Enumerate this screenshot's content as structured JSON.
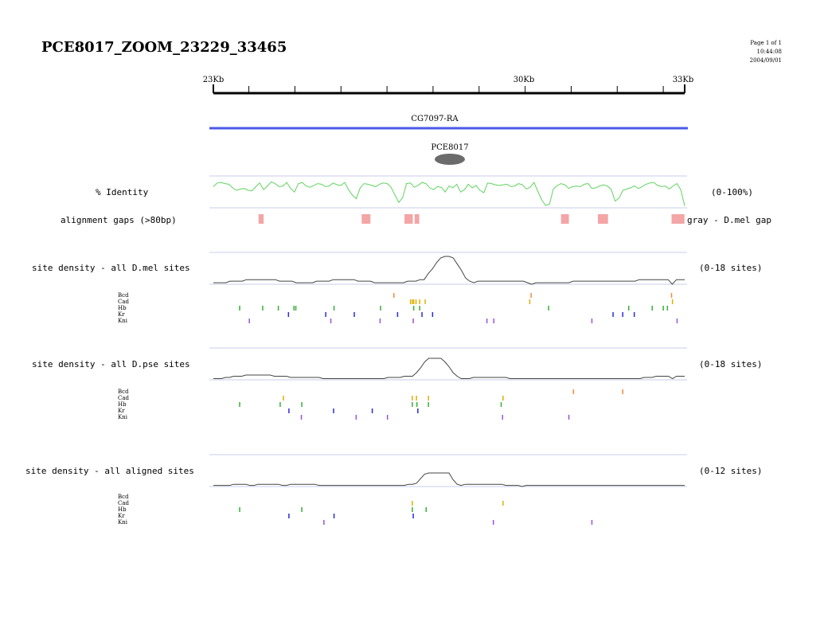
{
  "page": {
    "title": "PCE8017_ZOOM_23229_33465",
    "meta_lines": [
      "Page 1 of 1",
      "10:44:08",
      "2004/09/01"
    ]
  },
  "ruler": {
    "labels": [
      "23Kb",
      "30Kb",
      "33Kb"
    ],
    "start_kb": 23.229,
    "end_kb": 33.465
  },
  "gene": {
    "label": "CG7097-RA",
    "color": "#4a5ae8"
  },
  "element": {
    "label": "PCE8017",
    "color": "#6b6b6b"
  },
  "identity": {
    "label": "% Identity",
    "range_label": "(0-100%)",
    "color": "#5fd35f",
    "values": [
      70,
      82,
      84,
      80,
      78,
      66,
      58,
      62,
      64,
      58,
      56,
      70,
      82,
      60,
      72,
      86,
      80,
      70,
      72,
      84,
      64,
      52,
      80,
      84,
      72,
      68,
      74,
      80,
      78,
      70,
      72,
      82,
      76,
      74,
      84,
      60,
      42,
      30,
      66,
      80,
      78,
      74,
      70,
      78,
      82,
      80,
      68,
      42,
      18,
      34,
      80,
      82,
      68,
      74,
      84,
      80,
      66,
      60,
      70,
      68,
      52,
      72,
      66,
      78,
      52,
      60,
      78,
      66,
      74,
      58,
      50,
      82,
      80,
      76,
      74,
      76,
      78,
      70,
      72,
      80,
      76,
      62,
      68,
      84,
      54,
      26,
      8,
      12,
      62,
      74,
      80,
      76,
      64,
      70,
      72,
      70,
      78,
      80,
      64,
      66,
      72,
      76,
      72,
      60,
      22,
      32,
      58,
      62,
      66,
      72,
      64,
      70,
      78,
      82,
      84,
      74,
      70,
      72,
      62,
      72,
      80,
      60,
      6
    ]
  },
  "gaps": {
    "label": "alignment gaps (>80bp)",
    "note": "gray - D.mel gap",
    "color": "#f4a5a5",
    "blocks_kb": [
      [
        24.21,
        24.32
      ],
      [
        26.45,
        26.64
      ],
      [
        27.38,
        27.56
      ],
      [
        27.6,
        27.7
      ],
      [
        30.78,
        30.95
      ],
      [
        31.58,
        31.8
      ],
      [
        33.18,
        33.46
      ]
    ]
  },
  "tf_names": [
    "Bcd",
    "Cad",
    "Hb",
    "Kr",
    "Kni"
  ],
  "tf_colors": [
    "#f28c3c",
    "#e0b000",
    "#35b035",
    "#2a2ad8",
    "#9a50e8"
  ],
  "density_tracks": [
    {
      "label": "site density - all D.mel sites",
      "range_label": "(0-18 sites)",
      "max": 18,
      "values": [
        1,
        1,
        1,
        1,
        2,
        2,
        2,
        2,
        3,
        3,
        3,
        3,
        3,
        3,
        3,
        3,
        2,
        2,
        2,
        2,
        1,
        1,
        1,
        1,
        1,
        2,
        2,
        2,
        2,
        3,
        3,
        3,
        3,
        3,
        3,
        2,
        2,
        2,
        2,
        1,
        1,
        1,
        1,
        1,
        1,
        1,
        1,
        2,
        2,
        2,
        3,
        3,
        7,
        10,
        14,
        17,
        18,
        18,
        17,
        13,
        9,
        4,
        2,
        1,
        2,
        2,
        2,
        2,
        2,
        2,
        2,
        2,
        2,
        2,
        2,
        2,
        1,
        0,
        1,
        1,
        1,
        1,
        1,
        1,
        1,
        1,
        1,
        2,
        2,
        2,
        2,
        2,
        2,
        2,
        2,
        2,
        2,
        2,
        2,
        2,
        2,
        2,
        2,
        3,
        3,
        3,
        3,
        3,
        3,
        3,
        3,
        0,
        3,
        3,
        3
      ],
      "sites": [
        [
          27.15,
          30.13,
          33.18
        ],
        [
          27.51,
          27.55,
          27.58,
          27.63,
          27.71,
          27.83,
          30.1,
          33.2
        ],
        [
          23.8,
          24.3,
          24.64,
          24.98,
          25.02,
          25.85,
          26.86,
          27.58,
          27.71,
          30.51,
          32.25,
          32.76,
          33.0,
          33.09
        ],
        [
          24.86,
          25.67,
          26.29,
          27.23,
          27.76,
          27.99,
          31.91,
          32.12,
          32.37
        ],
        [
          24.01,
          25.78,
          26.85,
          27.57,
          29.17,
          29.32,
          31.45,
          33.3
        ]
      ]
    },
    {
      "label": "site density - all D.pse sites",
      "range_label": "(0-18 sites)",
      "max": 18,
      "values": [
        1,
        1,
        1,
        2,
        2,
        3,
        3,
        3,
        4,
        4,
        4,
        4,
        4,
        4,
        4,
        3,
        3,
        3,
        3,
        2,
        2,
        2,
        2,
        2,
        2,
        2,
        2,
        1,
        1,
        1,
        1,
        1,
        1,
        1,
        1,
        1,
        1,
        1,
        1,
        1,
        1,
        1,
        1,
        2,
        2,
        2,
        2,
        3,
        3,
        3,
        6,
        10,
        15,
        18,
        18,
        18,
        18,
        15,
        11,
        6,
        3,
        1,
        1,
        1,
        2,
        2,
        2,
        2,
        2,
        2,
        2,
        2,
        2,
        1,
        1,
        1,
        1,
        1,
        1,
        1,
        1,
        1,
        1,
        1,
        1,
        1,
        1,
        1,
        1,
        1,
        1,
        1,
        1,
        1,
        1,
        1,
        1,
        1,
        1,
        1,
        1,
        1,
        1,
        1,
        1,
        1,
        2,
        2,
        2,
        3,
        3,
        3,
        3,
        1,
        3,
        3,
        3
      ],
      "sites": [
        [
          31.05,
          32.12
        ],
        [
          24.75,
          27.55,
          27.64,
          27.9,
          29.52
        ],
        [
          23.8,
          24.68,
          25.15,
          27.55,
          27.65,
          27.9,
          29.48
        ],
        [
          24.87,
          25.84,
          27.67,
          26.68
        ],
        [
          25.14,
          26.33,
          27.01,
          29.51,
          30.95
        ]
      ]
    },
    {
      "label": "site density - all aligned sites",
      "range_label": "(0-12 sites)",
      "max": 12,
      "values": [
        1,
        1,
        1,
        1,
        1,
        2,
        2,
        2,
        2,
        1,
        1,
        2,
        2,
        2,
        2,
        2,
        2,
        1,
        1,
        2,
        2,
        2,
        2,
        2,
        2,
        2,
        1,
        1,
        1,
        1,
        1,
        1,
        1,
        1,
        1,
        1,
        1,
        1,
        1,
        1,
        1,
        1,
        1,
        1,
        1,
        1,
        1,
        1,
        2,
        2,
        3,
        7,
        11,
        12,
        12,
        12,
        12,
        12,
        12,
        6,
        2,
        1,
        2,
        2,
        2,
        2,
        2,
        2,
        2,
        2,
        2,
        2,
        1,
        1,
        1,
        1,
        0,
        1,
        1,
        1,
        1,
        1,
        1,
        1,
        1,
        1,
        1,
        1,
        1,
        1,
        1,
        1,
        1,
        1,
        1,
        1,
        1,
        1,
        1,
        1,
        1,
        1,
        1,
        1,
        1,
        1,
        1,
        1,
        1,
        1,
        1,
        1,
        1,
        1,
        1,
        1,
        1
      ],
      "sites": [
        [],
        [
          27.55,
          29.52
        ],
        [
          23.8,
          25.15,
          27.55,
          27.85
        ],
        [
          24.87,
          25.85,
          27.57
        ],
        [
          25.63,
          29.31,
          31.45
        ]
      ]
    }
  ]
}
